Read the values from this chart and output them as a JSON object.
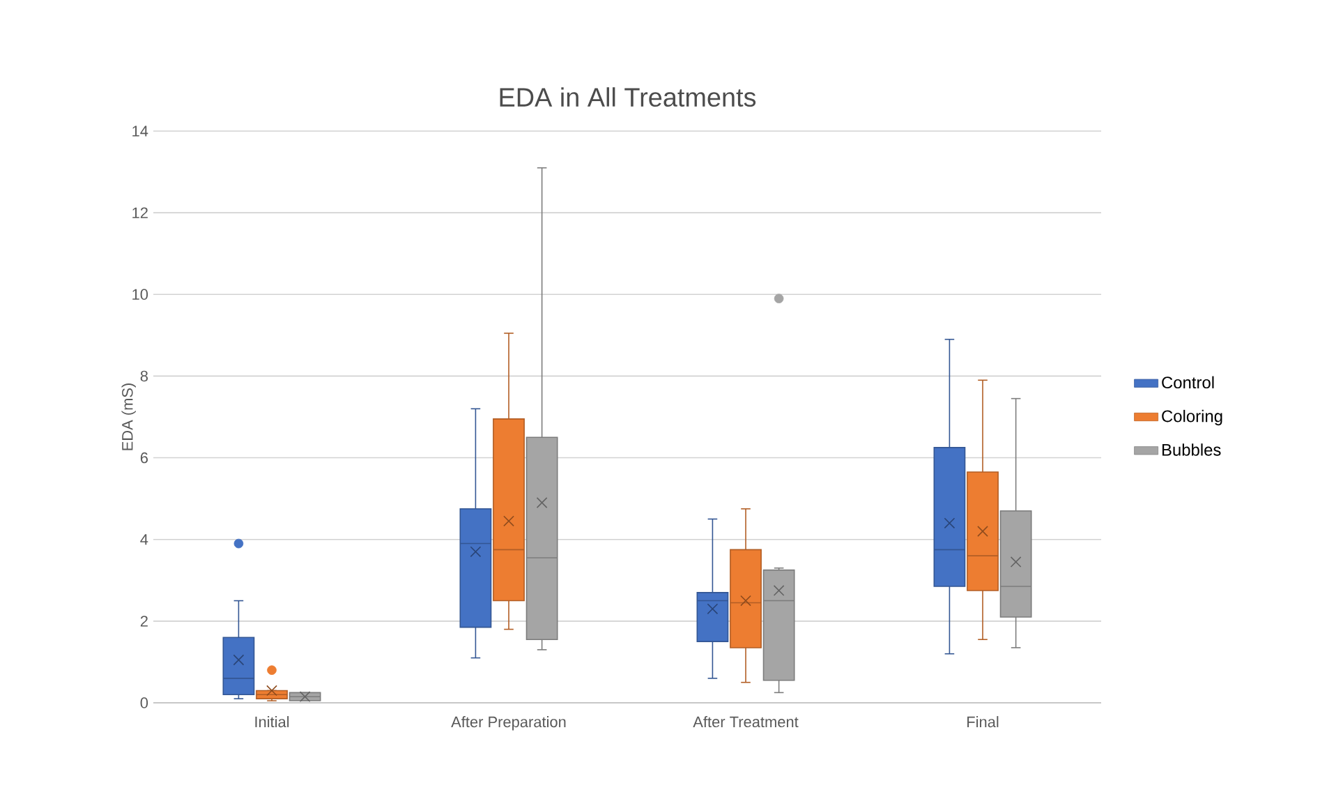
{
  "chart_data": {
    "type": "box",
    "title": "EDA in All Treatments",
    "ylabel": "EDA (mS)",
    "categories": [
      "Initial",
      "After Preparation",
      "After Treatment",
      "Final"
    ],
    "ylim": [
      0,
      14
    ],
    "yticks": [
      0,
      2,
      4,
      6,
      8,
      10,
      12,
      14
    ],
    "grid": "y",
    "legend": "right",
    "series": [
      {
        "name": "Control",
        "color": "#4472c4",
        "boxes": [
          {
            "low": 0.1,
            "q1": 0.2,
            "median": 0.6,
            "q3": 1.6,
            "high": 2.5,
            "mean": 1.05,
            "outliers": [
              3.9
            ]
          },
          {
            "low": 1.1,
            "q1": 1.85,
            "median": 3.9,
            "q3": 4.75,
            "high": 7.2,
            "mean": 3.7
          },
          {
            "low": 0.6,
            "q1": 1.5,
            "median": 2.5,
            "q3": 2.7,
            "high": 4.5,
            "mean": 2.3
          },
          {
            "low": 1.2,
            "q1": 2.85,
            "median": 3.75,
            "q3": 6.25,
            "high": 8.9,
            "mean": 4.4
          }
        ]
      },
      {
        "name": "Coloring",
        "color": "#ed7d31",
        "boxes": [
          {
            "low": 0.05,
            "q1": 0.1,
            "median": 0.2,
            "q3": 0.3,
            "high": 0.3,
            "mean": 0.3,
            "outliers": [
              0.8
            ]
          },
          {
            "low": 1.8,
            "q1": 2.5,
            "median": 3.75,
            "q3": 6.95,
            "high": 9.05,
            "mean": 4.45
          },
          {
            "low": 0.5,
            "q1": 1.35,
            "median": 2.45,
            "q3": 3.75,
            "high": 4.75,
            "mean": 2.5
          },
          {
            "low": 1.55,
            "q1": 2.75,
            "median": 3.6,
            "q3": 5.65,
            "high": 7.9,
            "mean": 4.2
          }
        ]
      },
      {
        "name": "Bubbles",
        "color": "#a5a5a5",
        "boxes": [
          {
            "low": 0.05,
            "q1": 0.05,
            "median": 0.15,
            "q3": 0.25,
            "high": 0.25,
            "mean": 0.15
          },
          {
            "low": 1.3,
            "q1": 1.55,
            "median": 3.55,
            "q3": 6.5,
            "high": 13.1,
            "mean": 4.9
          },
          {
            "low": 0.25,
            "q1": 0.55,
            "median": 2.5,
            "q3": 3.25,
            "high": 3.3,
            "mean": 2.75,
            "outliers": [
              9.9
            ]
          },
          {
            "low": 1.35,
            "q1": 2.1,
            "median": 2.85,
            "q3": 4.7,
            "high": 7.45,
            "mean": 3.45
          }
        ]
      }
    ]
  }
}
